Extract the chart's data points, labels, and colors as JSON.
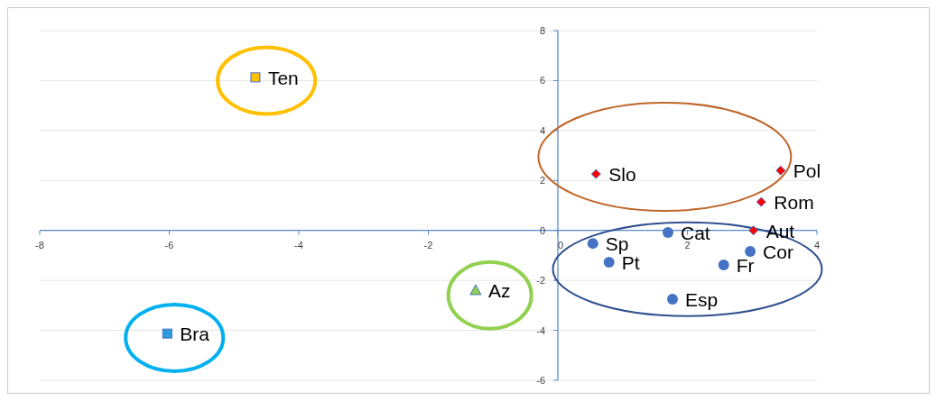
{
  "chart_data": {
    "type": "scatter",
    "xlim": [
      -8,
      4
    ],
    "ylim": [
      -6,
      8
    ],
    "xticks": [
      -8,
      -6,
      -4,
      -2,
      0,
      2,
      4
    ],
    "yticks": [
      -6,
      -4,
      -2,
      0,
      2,
      4,
      6,
      8
    ],
    "grid": "y",
    "series": [
      {
        "marker": "square",
        "color": "#ffc000",
        "x": [
          -4.67
        ],
        "values": [
          6.13
        ]
      },
      {
        "marker": "square",
        "color": "#2e9be0",
        "x": [
          -6.03
        ],
        "values": [
          -4.13
        ]
      },
      {
        "marker": "triangle",
        "color": "#92d050",
        "x": [
          -1.27
        ],
        "values": [
          -2.39
        ]
      },
      {
        "marker": "diamond",
        "color": "#ff0000",
        "x": [
          0.59,
          3.44,
          3.14,
          3.02
        ],
        "values": [
          2.26,
          2.4,
          1.14,
          0
        ]
      },
      {
        "marker": "circle",
        "color": "#4472c4",
        "x": [
          1.7,
          0.54,
          2.97,
          0.79,
          2.56,
          1.77
        ],
        "values": [
          -0.08,
          -0.52,
          -0.84,
          -1.27,
          -1.38,
          -2.75
        ]
      }
    ],
    "annotations": [
      {
        "text": "Ten",
        "x": -4.67,
        "y": 6.13
      },
      {
        "text": "Bra",
        "x": -6.03,
        "y": -4.13
      },
      {
        "text": "Az",
        "x": -1.27,
        "y": -2.39
      },
      {
        "text": "Slo",
        "x": 0.59,
        "y": 2.26
      },
      {
        "text": "Pol",
        "x": 3.44,
        "y": 2.4
      },
      {
        "text": "Rom",
        "x": 3.14,
        "y": 1.14
      },
      {
        "text": "Aut",
        "x": 3.02,
        "y": 0
      },
      {
        "text": "Cat",
        "x": 1.7,
        "y": -0.08
      },
      {
        "text": "Sp",
        "x": 0.54,
        "y": -0.52
      },
      {
        "text": "Cor",
        "x": 2.97,
        "y": -0.84
      },
      {
        "text": "Pt",
        "x": 0.79,
        "y": -1.27
      },
      {
        "text": "Fr",
        "x": 2.56,
        "y": -1.38
      },
      {
        "text": "Esp",
        "x": 1.77,
        "y": -2.75
      }
    ]
  }
}
